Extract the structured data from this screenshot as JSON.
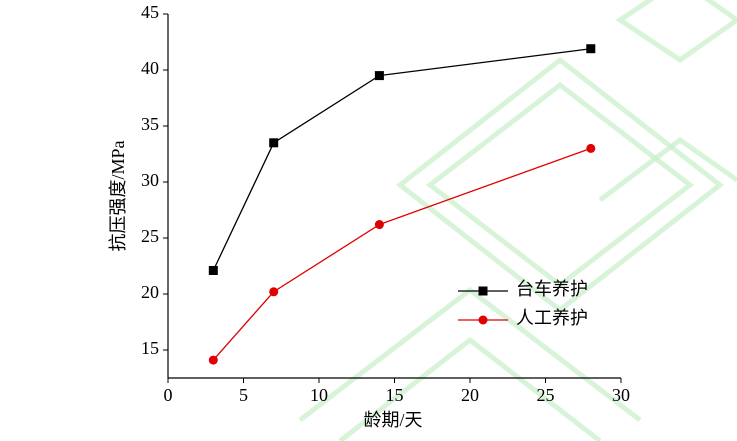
{
  "chart_data": {
    "type": "line",
    "xlabel": "龄期/天",
    "ylabel": "抗压强度/MPa",
    "x": [
      3,
      7,
      14,
      28
    ],
    "series": [
      {
        "name": "台车养护",
        "color": "#000000",
        "marker": "square",
        "values": [
          22.1,
          33.5,
          39.5,
          41.9
        ]
      },
      {
        "name": "人工养护",
        "color": "#e00000",
        "marker": "circle",
        "values": [
          14.1,
          20.2,
          26.2,
          33.0
        ]
      }
    ],
    "xlim": [
      0,
      30
    ],
    "xticks": [
      0,
      5,
      10,
      15,
      20,
      25,
      30
    ],
    "ylim": [
      12.5,
      45
    ],
    "yticks": [
      15,
      20,
      25,
      30,
      35,
      40,
      45
    ],
    "legend": "lower-right"
  }
}
